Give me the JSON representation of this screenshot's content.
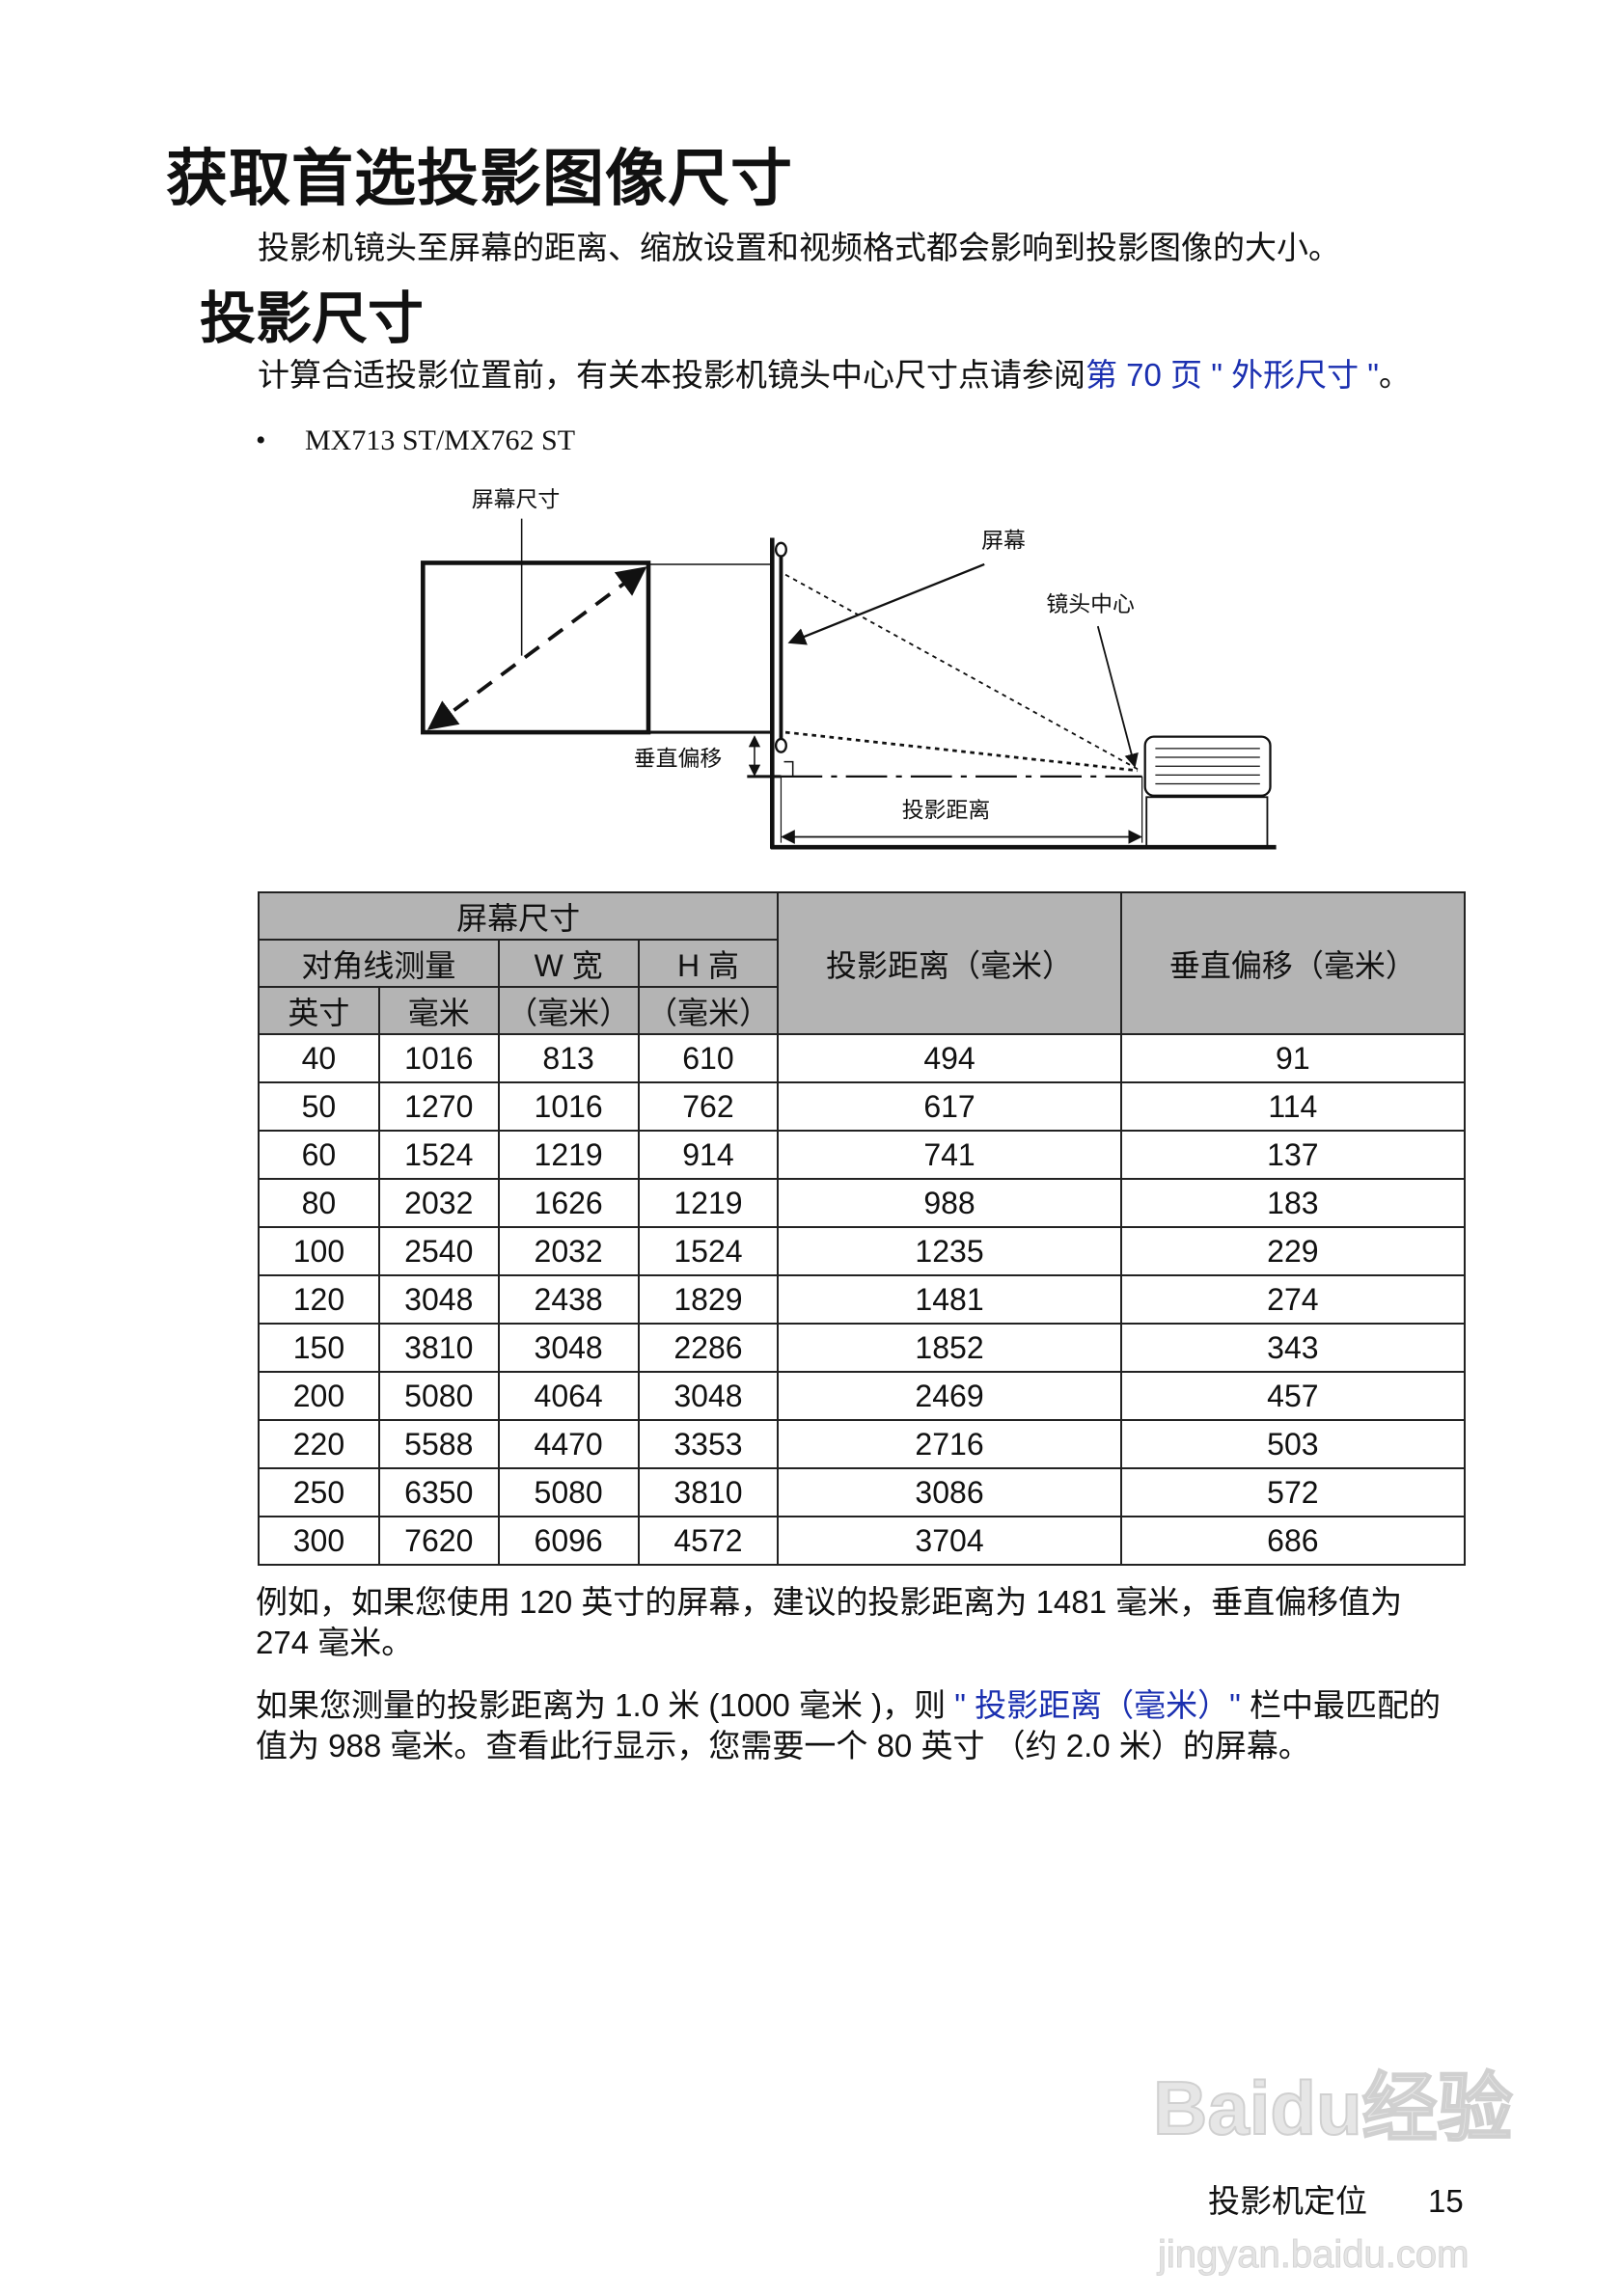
{
  "title": "获取首选投影图像尺寸",
  "intro": "投影机镜头至屏幕的距离、缩放设置和视频格式都会影响到投影图像的大小。",
  "section_title": "投影尺寸",
  "section_text_prefix": "计算合适投影位置前，有关本投影机镜头中心尺寸点请参阅",
  "section_link": "第 70 页 \" 外形尺寸 \"",
  "section_text_suffix": "。",
  "link_color": "#1a2fb0",
  "bullet": "•",
  "model": "MX713 ST/MX762 ST",
  "diagram": {
    "screen_size": "屏幕尺寸",
    "screen": "屏幕",
    "lens_center": "镜头中心",
    "vertical_offset": "垂直偏移",
    "projection_distance": "投影距离"
  },
  "table": {
    "header_fill": "#b4b4b4",
    "screen_size": "屏幕尺寸",
    "diagonal": "对角线测量",
    "inch": "英寸",
    "mm": "毫米",
    "width": "W 宽",
    "width_unit": "（毫米）",
    "height": "H 高",
    "height_unit": "（毫米）",
    "distance": "投影距离（毫米）",
    "offset": "垂直偏移（毫米）",
    "rows": [
      [
        "40",
        "1016",
        "813",
        "610",
        "494",
        "91"
      ],
      [
        "50",
        "1270",
        "1016",
        "762",
        "617",
        "114"
      ],
      [
        "60",
        "1524",
        "1219",
        "914",
        "741",
        "137"
      ],
      [
        "80",
        "2032",
        "1626",
        "1219",
        "988",
        "183"
      ],
      [
        "100",
        "2540",
        "2032",
        "1524",
        "1235",
        "229"
      ],
      [
        "120",
        "3048",
        "2438",
        "1829",
        "1481",
        "274"
      ],
      [
        "150",
        "3810",
        "3048",
        "2286",
        "1852",
        "343"
      ],
      [
        "200",
        "5080",
        "4064",
        "3048",
        "2469",
        "457"
      ],
      [
        "220",
        "5588",
        "4470",
        "3353",
        "2716",
        "503"
      ],
      [
        "250",
        "6350",
        "5080",
        "3810",
        "3086",
        "572"
      ],
      [
        "300",
        "7620",
        "6096",
        "4572",
        "3704",
        "686"
      ]
    ]
  },
  "example1_line1": "例如，如果您使用 120 英寸的屏幕，建议的投影距离为 1481 毫米，垂直偏移值为",
  "example1_line2": "274 毫米。",
  "example2_line1_prefix": "如果您测量的投影距离为 1.0 米 (1000 毫米 )，则 ",
  "example2_link": "\" 投影距离（毫米）\"",
  "example2_line1_suffix": " 栏中最匹配的",
  "example2_line2": "值为 988 毫米。查看此行显示，您需要一个 80 英寸 （约 2.0 米）的屏幕。",
  "footer": {
    "section": "投影机定位",
    "page": "15"
  },
  "watermark": {
    "logo": "Baidu经验",
    "url": "jingyan.baidu.com"
  }
}
